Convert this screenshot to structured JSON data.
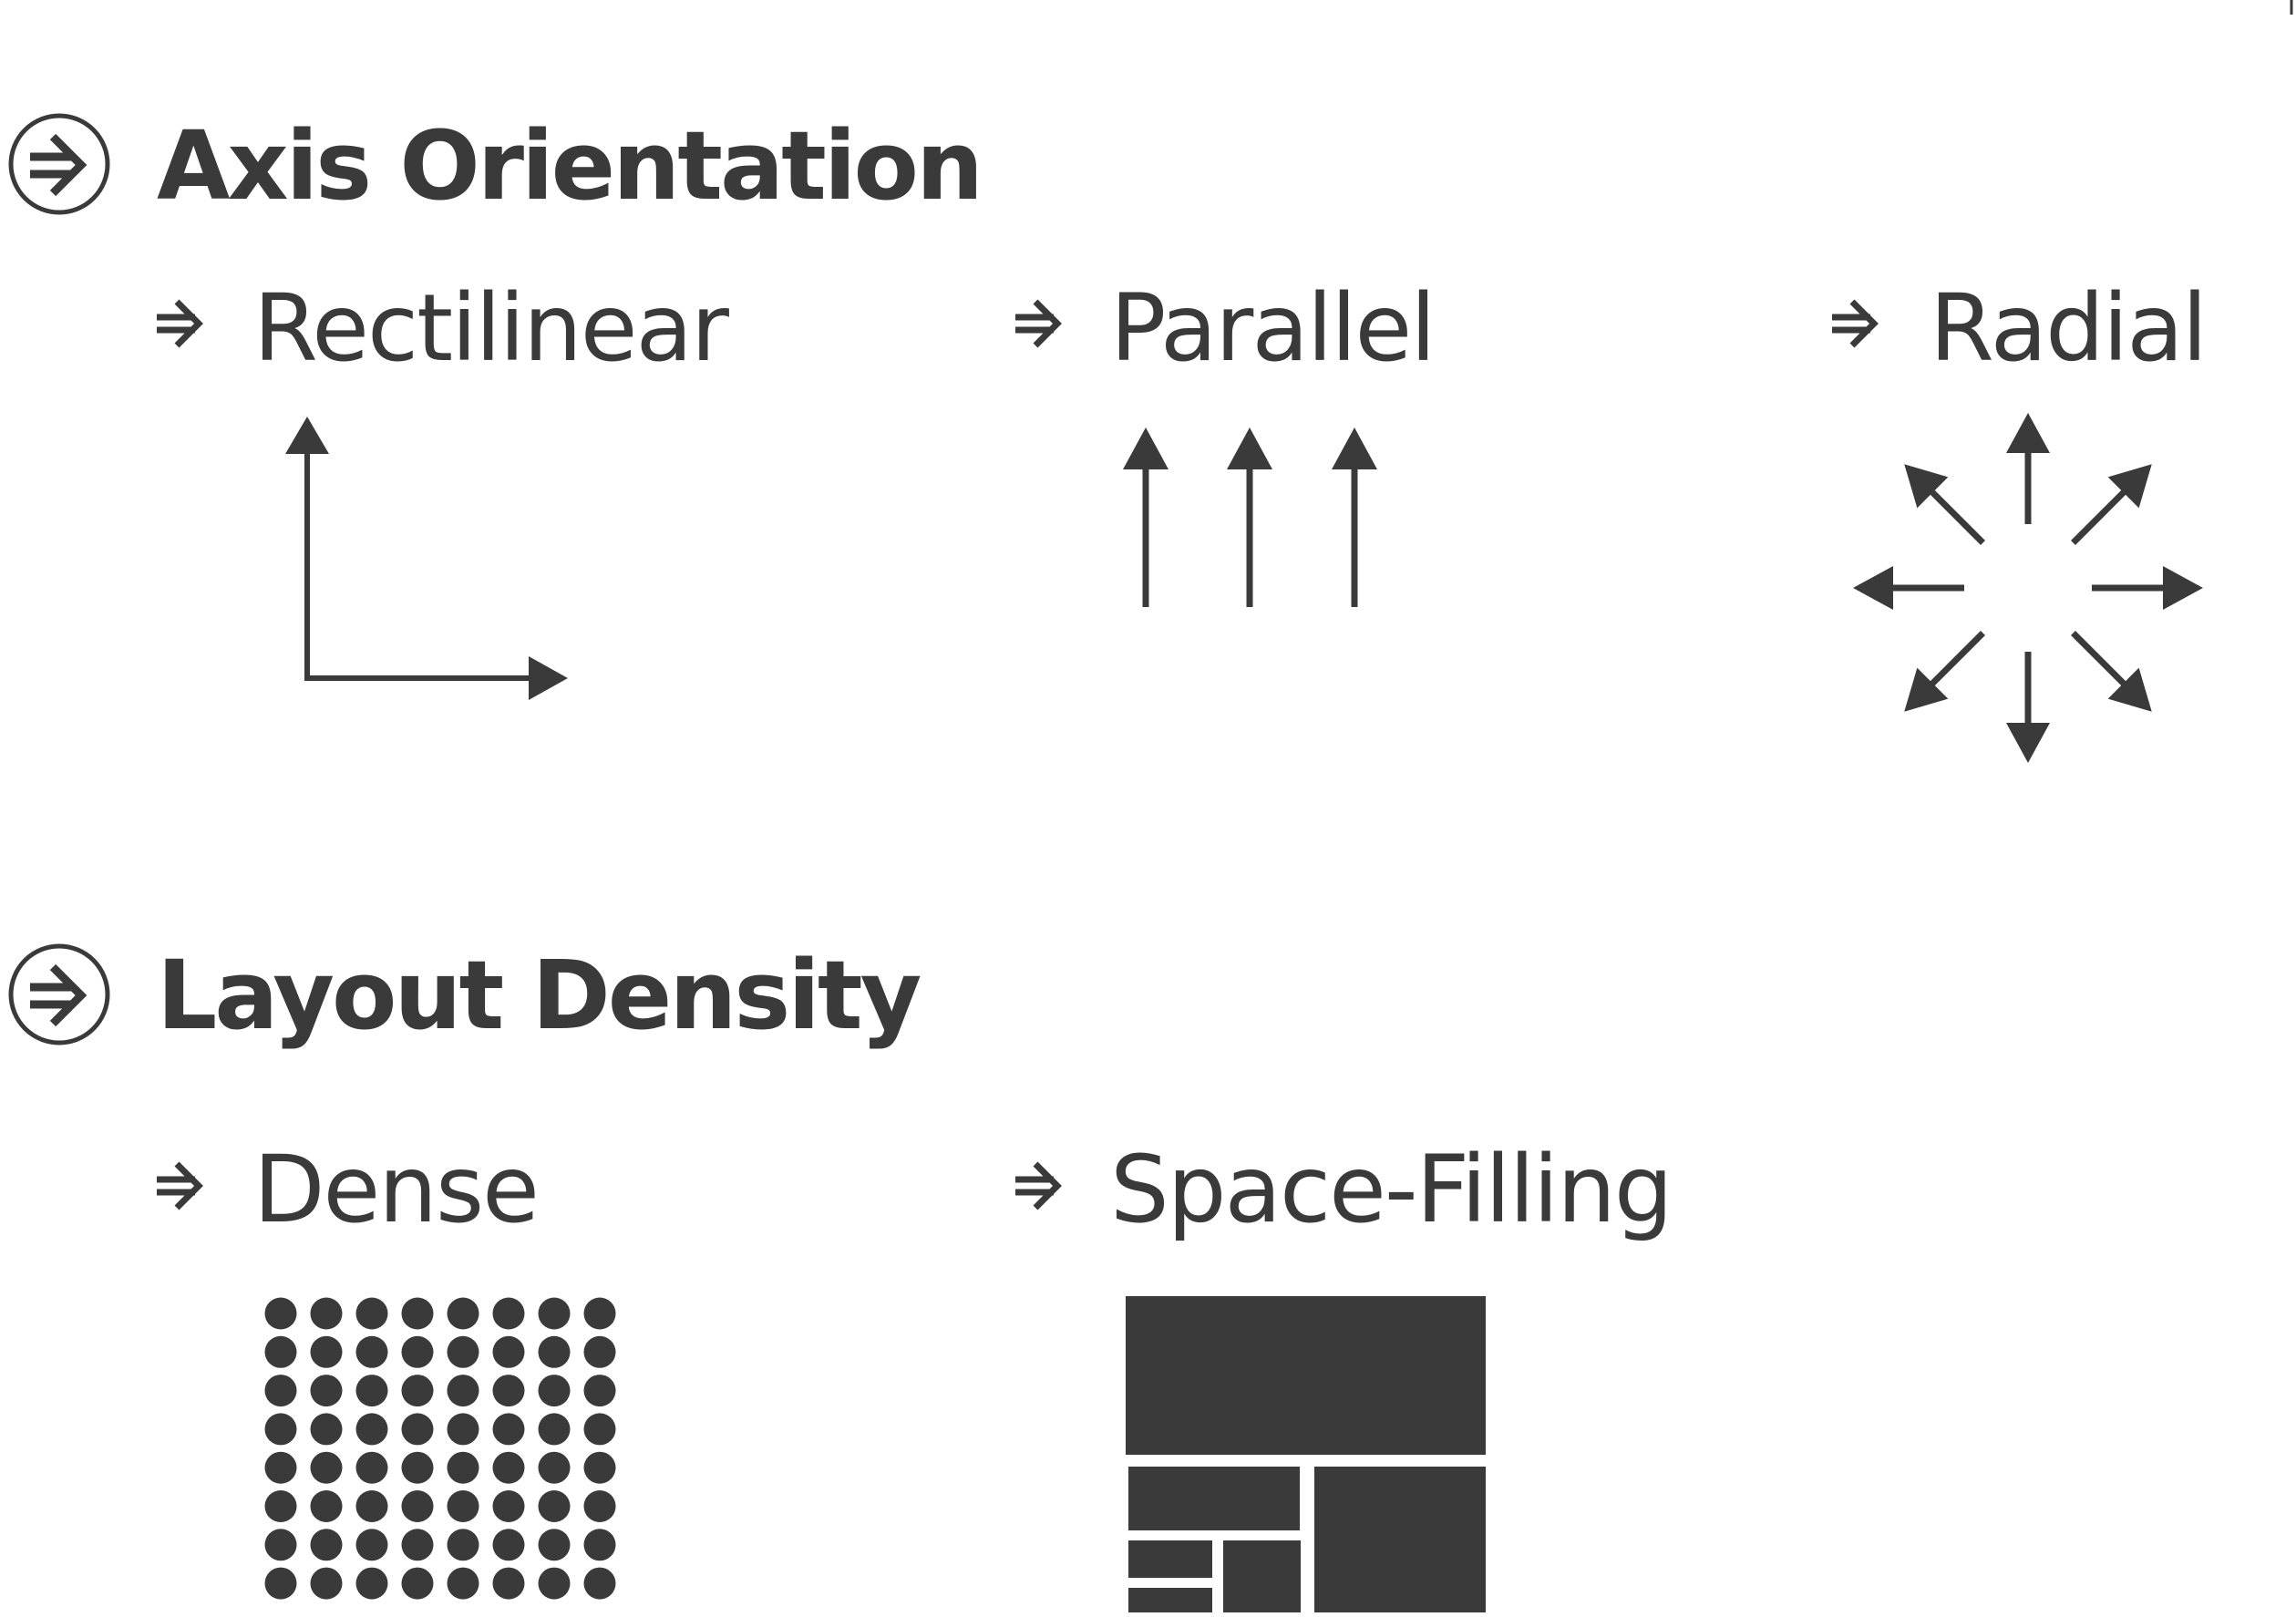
{
  "colors": {
    "ink": "#3a3a3a",
    "background": "#ffffff"
  },
  "sections": [
    {
      "title": "Axis Orientation",
      "icon": "circled-arrow-icon",
      "items": [
        {
          "label": "Rectilinear",
          "icon": "arrow-right-icon",
          "glyph": "perpendicular-axes-icon"
        },
        {
          "label": "Parallel",
          "icon": "arrow-right-icon",
          "glyph": "parallel-axes-icon"
        },
        {
          "label": "Radial",
          "icon": "arrow-right-icon",
          "glyph": "radial-axes-icon"
        }
      ]
    },
    {
      "title": "Layout Density",
      "icon": "circled-arrow-icon",
      "items": [
        {
          "label": "Dense",
          "icon": "arrow-right-icon",
          "glyph": "dot-grid-icon",
          "grid": {
            "rows": 8,
            "cols": 8
          }
        },
        {
          "label": "Space-Filling",
          "icon": "arrow-right-icon",
          "glyph": "treemap-icon"
        }
      ]
    }
  ]
}
